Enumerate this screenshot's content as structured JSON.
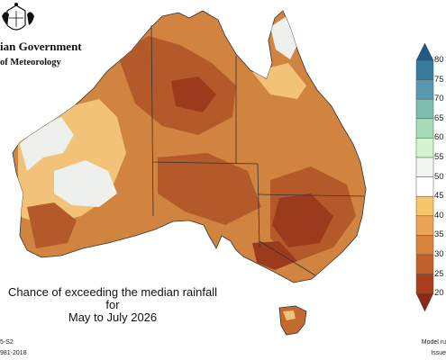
{
  "header": {
    "government_text": "ian Government",
    "bureau_text": "of Meteorology"
  },
  "caption": {
    "line1": "Chance of exceeding the median rainfall for",
    "line2": "May to July 2026"
  },
  "footer": {
    "left_line1": "5-S2",
    "left_line2": "981-2018",
    "right_line1": "Model ru",
    "right_line2": "Issue"
  },
  "legend": {
    "tick_labels": [
      "80",
      "75",
      "70",
      "65",
      "60",
      "55",
      "50",
      "45",
      "40",
      "35",
      "30",
      "25",
      "20"
    ],
    "bins": [
      {
        "range": "75-80",
        "color": "#3a7ca0"
      },
      {
        "range": "70-75",
        "color": "#5a98b0"
      },
      {
        "range": "65-70",
        "color": "#7fbdb0"
      },
      {
        "range": "60-65",
        "color": "#a6ddb6"
      },
      {
        "range": "55-60",
        "color": "#d6f3d1"
      },
      {
        "range": "50-55",
        "color": "#f3f6f0"
      },
      {
        "range": "45-50",
        "color": "#ffffff"
      },
      {
        "range": "40-45",
        "color": "#f7c66a"
      },
      {
        "range": "35-40",
        "color": "#eaa355"
      },
      {
        "range": "30-35",
        "color": "#d9823a"
      },
      {
        "range": "25-30",
        "color": "#c2602c"
      },
      {
        "range": "20-25",
        "color": "#a8401f"
      }
    ],
    "top_arrow_color": "#1d5a86",
    "bottom_arrow_color": "#8a2a14"
  },
  "colors": {
    "map_base": "#d18440",
    "dark_zone": "#b45a2a",
    "very_dark_zone": "#9c3a1e",
    "pale_zone": "#eef0ec",
    "light_zone": "#f2c278",
    "border": "#333333"
  }
}
